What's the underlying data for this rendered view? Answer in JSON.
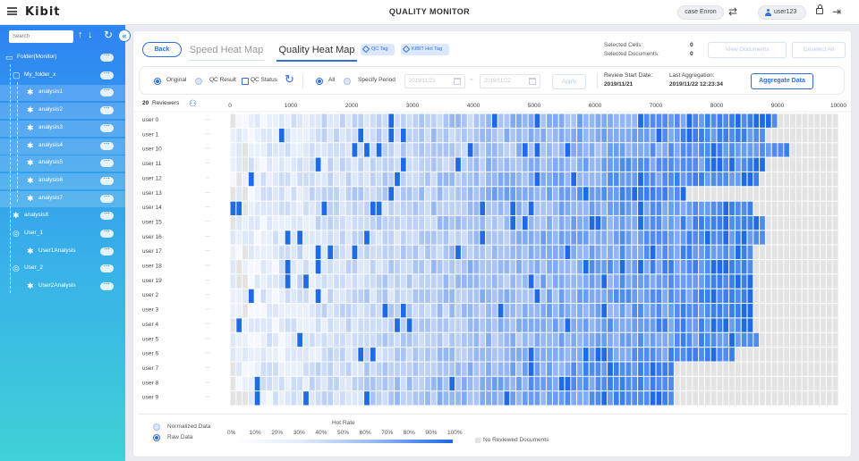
{
  "header": {
    "logo": "Kibit",
    "title": "QUALITY MONITOR",
    "case_label": "case Enron",
    "user": "user123"
  },
  "sidebar": {
    "search_placeholder": "Search",
    "items": [
      {
        "label": "Folder(Monitor)",
        "icon": "monitor-icon",
        "level": 0
      },
      {
        "label": "My_folder_x",
        "icon": "folder-icon",
        "level": 1
      },
      {
        "label": "analysis1",
        "icon": "gear-icon",
        "level": 2
      },
      {
        "label": "analysis2",
        "icon": "gear-icon",
        "level": 2
      },
      {
        "label": "analysis3",
        "icon": "gear-icon",
        "level": 2
      },
      {
        "label": "analysis4",
        "icon": "gear-icon",
        "level": 2
      },
      {
        "label": "analysis5",
        "icon": "gear-icon",
        "level": 2
      },
      {
        "label": "analysis6",
        "icon": "gear-icon",
        "level": 2
      },
      {
        "label": "analysis7",
        "icon": "gear-icon",
        "level": 2
      },
      {
        "label": "analysis8",
        "icon": "gear-icon",
        "level": 1
      },
      {
        "label": "User_1",
        "icon": "user-icon",
        "level": 1
      },
      {
        "label": "User1Analysis",
        "icon": "gear-icon",
        "level": 2
      },
      {
        "label": "User_2",
        "icon": "user-icon",
        "level": 1
      },
      {
        "label": "User2Analysis",
        "icon": "gear-icon",
        "level": 2
      }
    ]
  },
  "toolbar": {
    "back": "Back",
    "tab_speed": "Speed Heat Map",
    "tab_quality": "Quality Heat Map",
    "tag_qc": "QC Tag",
    "tag_hot": "KIBIT Hot Tag",
    "selected_cells_label": "Selected Cells:",
    "selected_cells": "0",
    "selected_docs_label": "Selected Documents:",
    "selected_docs": "0",
    "view_documents": "View Documents",
    "deselect_all": "Deselect All"
  },
  "filters": {
    "original": "Original",
    "qc_result": "QC Result",
    "qc_status": "QC Status",
    "all": "All",
    "specify_period": "Specify Period",
    "date_from": "2019/11/21",
    "date_to": "2019/11/22",
    "apply": "Apply",
    "review_start_label": "Review Start Date:",
    "review_start": "2019/11/21",
    "last_agg_label": "Last Aggregation:",
    "last_agg": "2019/11/22 12:23:34",
    "aggregate": "Aggregate Data"
  },
  "heatmap": {
    "reviewer_count": "20",
    "reviewer_word": "Reviewers",
    "x_ticks": [
      "0",
      "1000",
      "2000",
      "3000",
      "4000",
      "5000",
      "6000",
      "7000",
      "8000",
      "9000",
      "10000"
    ],
    "rows": [
      "user 0",
      "user 1",
      "user 10",
      "user 11",
      "user 12",
      "user 13",
      "user 14",
      "user 15",
      "user 16",
      "user 17",
      "user 18",
      "user 19",
      "user 2",
      "user 3",
      "user 4",
      "user 5",
      "user 6",
      "user 7",
      "user 8",
      "user 9"
    ],
    "row_ends": [
      9000,
      8800,
      9200,
      8800,
      8700,
      7500,
      8600,
      8800,
      8800,
      8600,
      8600,
      8600,
      8600,
      8600,
      8600,
      8700,
      8300,
      7300,
      7300,
      7300
    ],
    "row_menu": "···"
  },
  "legend": {
    "normalized": "Normalized Data",
    "raw": "Raw Data",
    "hot_rate": "Hot Rate",
    "percents": [
      "0%",
      "10%",
      "20%",
      "30%",
      "40%",
      "50%",
      "60%",
      "70%",
      "80%",
      "90%",
      "100%"
    ],
    "no_reviewed": "No Reviewed Documents"
  },
  "colors": {
    "accent": "#2f6fe0",
    "sidebar_top": "#2e84f2",
    "sidebar_bottom": "#3fd2d6",
    "no_data": "#e3e3e3"
  }
}
